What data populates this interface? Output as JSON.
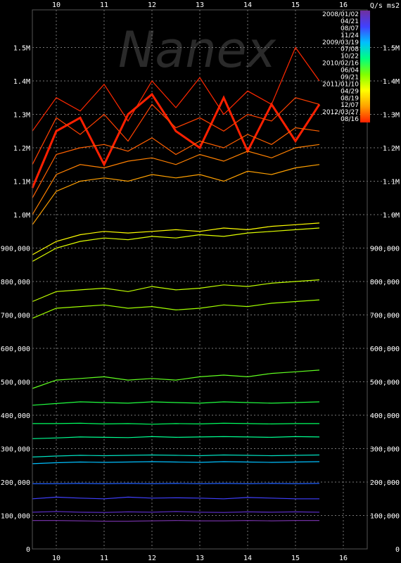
{
  "chart_data": {
    "type": "line",
    "title": "",
    "watermark": "Nanex",
    "unit_label": "Q/s ms2",
    "xlabel": "",
    "ylabel": "",
    "x_range": [
      9.5,
      16.5
    ],
    "x_ticks": [
      "10",
      "11",
      "12",
      "13",
      "14",
      "15",
      "16"
    ],
    "ylim": [
      0,
      1600000
    ],
    "y_ticks_left": [
      "0",
      "100,000",
      "200,000",
      "300,000",
      "400,000",
      "500,000",
      "600,000",
      "700,000",
      "800,000",
      "900,000",
      "1.0M",
      "1.1M",
      "1.2M",
      "1.3M",
      "1.4M",
      "1.5M"
    ],
    "y_ticks_right": [
      "0",
      "100,000",
      "200,000",
      "300,000",
      "400,000",
      "500,000",
      "600,000",
      "700,000",
      "800,000",
      "900,000",
      "1.0M",
      "1.1M",
      "1.2M",
      "1.3M",
      "1.4M",
      "1.5M"
    ],
    "grid": "dashed",
    "legend_position": "top-right",
    "legend_dates": [
      "2008/01/02",
      "04/21",
      "08/07",
      "11/24",
      "2009/03/19",
      "07/08",
      "10/22",
      "2010/02/16",
      "06/04",
      "09/21",
      "2011/01/10",
      "04/29",
      "08/19",
      "12/07",
      "2012/03/27",
      "08/16"
    ],
    "color_scale": [
      "#7030a0",
      "#4040ff",
      "#00c0ff",
      "#00ff80",
      "#80ff00",
      "#ffff00",
      "#ffa000",
      "#ff2000"
    ],
    "x": [
      9.5,
      10,
      10.5,
      11,
      11.5,
      12,
      12.5,
      13,
      13.5,
      14,
      14.5,
      15,
      15.5
    ],
    "series": [
      {
        "values": [
          1080000,
          1250000,
          1290000,
          1150000,
          1300000,
          1360000,
          1250000,
          1200000,
          1350000,
          1190000,
          1330000,
          1220000,
          1330000
        ],
        "color": "#ff2000",
        "highlight": true
      },
      {
        "values": [
          1250000,
          1350000,
          1310000,
          1390000,
          1280000,
          1400000,
          1320000,
          1410000,
          1300000,
          1370000,
          1330000,
          1500000,
          1400000
        ],
        "color": "#ff2800"
      },
      {
        "values": [
          1150000,
          1290000,
          1240000,
          1300000,
          1220000,
          1330000,
          1260000,
          1290000,
          1250000,
          1300000,
          1280000,
          1350000,
          1330000
        ],
        "color": "#ff4000"
      },
      {
        "values": [
          1050000,
          1180000,
          1200000,
          1210000,
          1190000,
          1230000,
          1180000,
          1220000,
          1200000,
          1240000,
          1210000,
          1260000,
          1250000
        ],
        "color": "#ff6000"
      },
      {
        "values": [
          1000000,
          1120000,
          1150000,
          1140000,
          1160000,
          1170000,
          1150000,
          1180000,
          1160000,
          1190000,
          1170000,
          1200000,
          1210000
        ],
        "color": "#ff8000"
      },
      {
        "values": [
          970000,
          1070000,
          1100000,
          1110000,
          1100000,
          1120000,
          1110000,
          1120000,
          1100000,
          1130000,
          1120000,
          1140000,
          1150000
        ],
        "color": "#ffa000"
      },
      {
        "values": [
          880000,
          920000,
          940000,
          950000,
          945000,
          950000,
          955000,
          950000,
          960000,
          955000,
          965000,
          970000,
          975000
        ],
        "color": "#ffff00"
      },
      {
        "values": [
          860000,
          900000,
          920000,
          930000,
          925000,
          935000,
          930000,
          940000,
          935000,
          945000,
          950000,
          955000,
          960000
        ],
        "color": "#e0ff00"
      },
      {
        "values": [
          740000,
          770000,
          775000,
          780000,
          770000,
          785000,
          775000,
          780000,
          790000,
          785000,
          795000,
          800000,
          805000
        ],
        "color": "#c0ff00"
      },
      {
        "values": [
          690000,
          720000,
          725000,
          730000,
          720000,
          725000,
          715000,
          720000,
          730000,
          725000,
          735000,
          740000,
          745000
        ],
        "color": "#a0ff00"
      },
      {
        "values": [
          480000,
          505000,
          510000,
          515000,
          505000,
          510000,
          505000,
          515000,
          520000,
          515000,
          525000,
          530000,
          535000
        ],
        "color": "#60ff20"
      },
      {
        "values": [
          430000,
          435000,
          440000,
          438000,
          436000,
          440000,
          438000,
          436000,
          440000,
          438000,
          436000,
          438000,
          440000
        ],
        "color": "#20ff40"
      },
      {
        "values": [
          375000,
          375000,
          376000,
          374000,
          375000,
          373000,
          375000,
          374000,
          376000,
          375000,
          374000,
          375000,
          375000
        ],
        "color": "#00ff60"
      },
      {
        "values": [
          330000,
          332000,
          335000,
          334000,
          333000,
          336000,
          334000,
          335000,
          336000,
          335000,
          334000,
          336000,
          335000
        ],
        "color": "#00ff90"
      },
      {
        "values": [
          275000,
          278000,
          280000,
          279000,
          280000,
          281000,
          280000,
          279000,
          281000,
          280000,
          279000,
          280000,
          281000
        ],
        "color": "#00e0c0"
      },
      {
        "values": [
          255000,
          258000,
          260000,
          259000,
          260000,
          261000,
          260000,
          259000,
          261000,
          260000,
          259000,
          260000,
          261000
        ],
        "color": "#00c0ff"
      },
      {
        "values": [
          195000,
          195000,
          196000,
          195000,
          196000,
          195000,
          196000,
          195000,
          196000,
          195000,
          196000,
          195000,
          196000
        ],
        "color": "#2060ff"
      },
      {
        "values": [
          150000,
          155000,
          152000,
          150000,
          155000,
          152000,
          153000,
          152000,
          150000,
          154000,
          152000,
          150000,
          150000
        ],
        "color": "#4040ff"
      },
      {
        "values": [
          110000,
          112000,
          110000,
          109000,
          111000,
          110000,
          112000,
          110000,
          109000,
          111000,
          110000,
          111000,
          110000
        ],
        "color": "#6030d0"
      },
      {
        "values": [
          85000,
          85000,
          84000,
          83000,
          83000,
          84000,
          85000,
          84000,
          84000,
          85000,
          84000,
          85000,
          85000
        ],
        "color": "#7030a0"
      }
    ]
  }
}
